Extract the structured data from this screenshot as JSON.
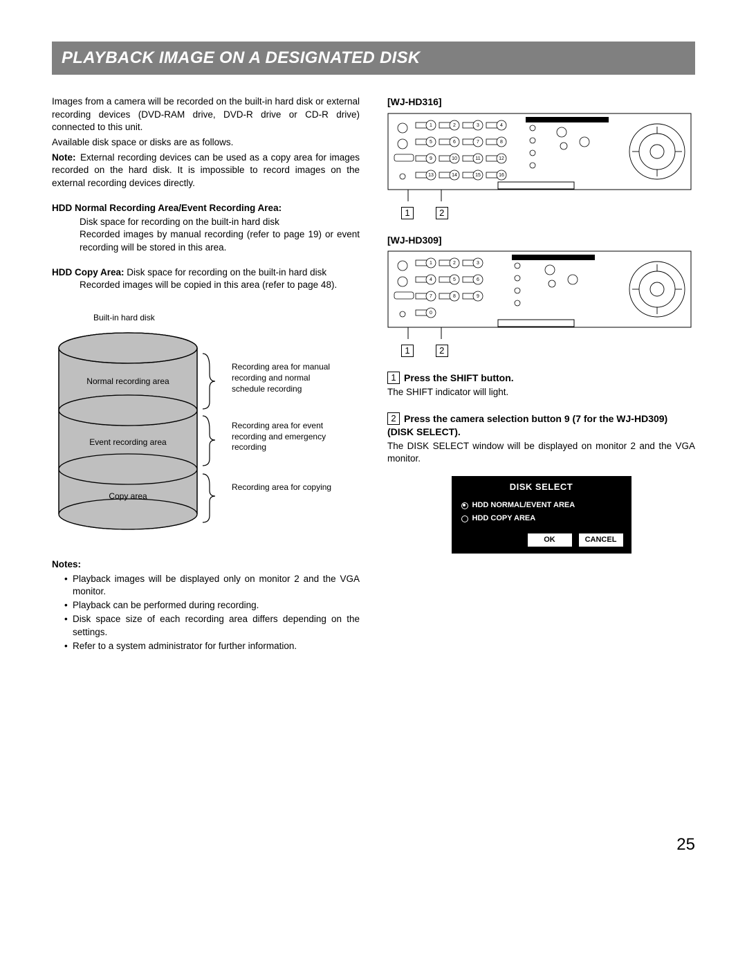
{
  "title": "PLAYBACK IMAGE ON A DESIGNATED DISK",
  "intro": {
    "p1": "Images from a camera will be recorded on the built-in hard disk or external recording devices (DVD-RAM drive, DVD-R drive or CD-R drive) connected to this unit.",
    "p2": "Available disk space or disks are as follows.",
    "note_label": "Note:",
    "note_text": " External recording devices can be used as a copy area for images recorded on the hard disk. It is impossible to record images on the external recording devices directly."
  },
  "hdd_normal": {
    "h": "HDD Normal Recording Area/Event Recording Area:",
    "l1": "Disk space for recording on the built-in hard disk",
    "l2": "Recorded images by manual recording (refer to page 19) or event recording will be stored in this area."
  },
  "hdd_copy": {
    "h": "HDD Copy Area:",
    "h_tail": " Disk space for recording on the built-in hard disk",
    "l1": "Recorded images will be copied in this area (refer to page 48)."
  },
  "cyl": {
    "title": "Built-in hard disk",
    "areas": [
      "Normal recording area",
      "Event recording area",
      "Copy area"
    ],
    "legends": [
      "Recording area for manual recording and normal schedule recording",
      "Recording area for event recording and emergency recording",
      "Recording area for copying"
    ],
    "fill": "#bfbfbf",
    "stroke": "#000"
  },
  "notes": {
    "h": "Notes:",
    "items": [
      "Playback images will be displayed only on monitor 2 and the VGA monitor.",
      "Playback can be performed during recording.",
      "Disk space size of each recording area differs depending on the settings.",
      "Refer to a system administrator for further information."
    ]
  },
  "right": {
    "m1": "[WJ-HD316]",
    "m2": "[WJ-HD309]",
    "panel316_buttons": [
      "1",
      "2",
      "3",
      "4",
      "5",
      "6",
      "7",
      "8",
      "9",
      "10",
      "11",
      "12",
      "13",
      "14",
      "15",
      "16"
    ],
    "panel309_buttons": [
      "1",
      "2",
      "3",
      "4",
      "5",
      "6",
      "7",
      "8",
      "9",
      "0"
    ],
    "callout1": "1",
    "callout2": "2"
  },
  "steps": {
    "s1_num": "1",
    "s1_h": "Press the SHIFT button.",
    "s1_p": "The SHIFT indicator will light.",
    "s2_num": "2",
    "s2_h": "Press the camera selection button 9 (7 for the WJ-HD309) (DISK SELECT).",
    "s2_p": "The DISK SELECT window will be displayed on monitor 2 and the VGA monitor."
  },
  "disk_select": {
    "title": "DISK SELECT",
    "opt1": "HDD NORMAL/EVENT AREA",
    "opt2": "HDD COPY AREA",
    "ok": "OK",
    "cancel": "CANCEL"
  },
  "page": "25"
}
